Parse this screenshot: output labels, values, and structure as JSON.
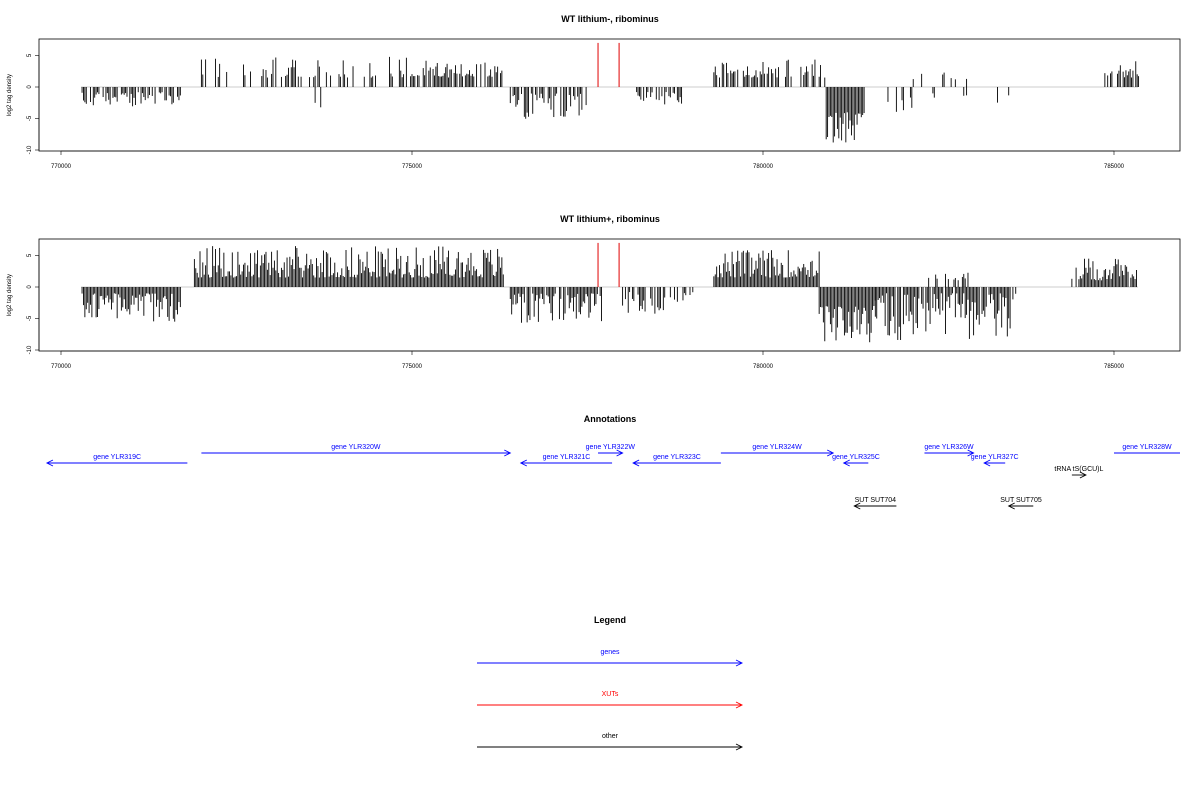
{
  "chart_data": [
    {
      "type": "bar",
      "title": "WT lithium-, ribominus",
      "ylabel": "log2 tag density",
      "xlim": [
        769800,
        786000
      ],
      "ylim": [
        -10,
        7.5
      ],
      "xticks": [
        770000,
        775000,
        780000,
        785000
      ],
      "xtick_labels": [
        "770000",
        "775000",
        "780000",
        "785000"
      ],
      "yticks": [
        -10,
        -5,
        0,
        5
      ],
      "ytick_labels": [
        "-10",
        "-5",
        "0",
        "5"
      ],
      "baseline": 0,
      "grid": false,
      "line_color": "#000000",
      "highlight_color": "#e00000",
      "highlights": [
        {
          "x": 777650,
          "value": 7
        },
        {
          "x": 777950,
          "value": 7
        }
      ],
      "regions": [
        {
          "start": 770300,
          "end": 771700,
          "sign": -1,
          "density": 0.6,
          "min": 0.8,
          "max": 3.2
        },
        {
          "start": 772000,
          "end": 775000,
          "sign": 1,
          "density": 0.4,
          "min": 1.5,
          "max": 4.8
        },
        {
          "start": 773600,
          "end": 773700,
          "sign": -1,
          "density": 0.5,
          "min": 2.5,
          "max": 3.3
        },
        {
          "start": 775000,
          "end": 776300,
          "sign": 1,
          "density": 0.6,
          "min": 1.5,
          "max": 4.2
        },
        {
          "start": 776400,
          "end": 777500,
          "sign": -1,
          "density": 0.6,
          "min": 1.0,
          "max": 5.2
        },
        {
          "start": 778200,
          "end": 778900,
          "sign": -1,
          "density": 0.5,
          "min": 0.8,
          "max": 3.0
        },
        {
          "start": 779300,
          "end": 780900,
          "sign": 1,
          "density": 0.7,
          "min": 1.5,
          "max": 4.5
        },
        {
          "start": 780900,
          "end": 781450,
          "sign": -1,
          "density": 1.0,
          "min": 4.0,
          "max": 9.2
        },
        {
          "start": 781700,
          "end": 783500,
          "sign": -1,
          "density": 0.15,
          "min": 1.0,
          "max": 4.2
        },
        {
          "start": 782100,
          "end": 782900,
          "sign": 1,
          "density": 0.15,
          "min": 1.2,
          "max": 2.3
        },
        {
          "start": 784850,
          "end": 785350,
          "sign": 1,
          "density": 0.8,
          "min": 1.5,
          "max": 4.5
        }
      ]
    },
    {
      "type": "bar",
      "title": "WT lithium+, ribominus",
      "ylabel": "log2 tag density",
      "xlim": [
        769800,
        786000
      ],
      "ylim": [
        -10,
        7.5
      ],
      "xticks": [
        770000,
        775000,
        780000,
        785000
      ],
      "xtick_labels": [
        "770000",
        "775000",
        "780000",
        "785000"
      ],
      "yticks": [
        -10,
        -5,
        0,
        5
      ],
      "ytick_labels": [
        "-10",
        "-5",
        "0",
        "5"
      ],
      "baseline": 0,
      "grid": false,
      "line_color": "#000000",
      "highlight_color": "#e00000",
      "highlights": [
        {
          "x": 777650,
          "value": 7
        },
        {
          "x": 777950,
          "value": 7
        }
      ],
      "regions": [
        {
          "start": 770300,
          "end": 771700,
          "sign": -1,
          "density": 1.0,
          "min": 1.0,
          "max": 5.5
        },
        {
          "start": 771900,
          "end": 776300,
          "sign": 1,
          "density": 1.0,
          "min": 1.5,
          "max": 6.5
        },
        {
          "start": 776400,
          "end": 777700,
          "sign": -1,
          "density": 0.8,
          "min": 1.0,
          "max": 5.8
        },
        {
          "start": 778000,
          "end": 779000,
          "sign": -1,
          "density": 0.4,
          "min": 0.8,
          "max": 4.5
        },
        {
          "start": 779300,
          "end": 780800,
          "sign": 1,
          "density": 1.0,
          "min": 1.5,
          "max": 6.0
        },
        {
          "start": 780800,
          "end": 781600,
          "sign": -1,
          "density": 1.0,
          "min": 3.0,
          "max": 9.0
        },
        {
          "start": 781600,
          "end": 783600,
          "sign": -1,
          "density": 0.9,
          "min": 1.0,
          "max": 8.5
        },
        {
          "start": 782300,
          "end": 783000,
          "sign": 1,
          "density": 0.4,
          "min": 1.0,
          "max": 2.8
        },
        {
          "start": 784400,
          "end": 785350,
          "sign": 1,
          "density": 0.9,
          "min": 1.0,
          "max": 4.5
        }
      ]
    },
    {
      "type": "annotation-track",
      "title": "Annotations",
      "xlim": [
        769800,
        786000
      ],
      "features": [
        {
          "label": "gene YLR319C",
          "start": 769800,
          "end": 771800,
          "strand": "-",
          "row": 1,
          "color": "#0000ff"
        },
        {
          "label": "gene YLR320W",
          "start": 772000,
          "end": 776400,
          "strand": "+",
          "row": 0,
          "color": "#0000ff"
        },
        {
          "label": "gene YLR321C",
          "start": 776550,
          "end": 777850,
          "strand": "-",
          "row": 1,
          "color": "#0000ff"
        },
        {
          "label": "gene YLR322W",
          "start": 777650,
          "end": 778000,
          "strand": "+",
          "row": 0,
          "color": "#0000ff"
        },
        {
          "label": "gene YLR323C",
          "start": 778150,
          "end": 779400,
          "strand": "-",
          "row": 1,
          "color": "#0000ff"
        },
        {
          "label": "gene YLR324W",
          "start": 779400,
          "end": 781000,
          "strand": "+",
          "row": 0,
          "color": "#0000ff"
        },
        {
          "label": "gene YLR325C",
          "start": 781150,
          "end": 781500,
          "strand": "-",
          "row": 1,
          "color": "#0000ff"
        },
        {
          "label": "gene YLR326W",
          "start": 782300,
          "end": 783000,
          "strand": "+",
          "row": 0,
          "color": "#0000ff"
        },
        {
          "label": "gene YLR327C",
          "start": 783150,
          "end": 783450,
          "strand": "-",
          "row": 1,
          "color": "#0000ff"
        },
        {
          "label": "tRNA tS(GCU)L",
          "start": 784400,
          "end": 784600,
          "strand": "+",
          "row": 2,
          "color": "#000000"
        },
        {
          "label": "gene YLR328W",
          "start": 785000,
          "end": 786000,
          "strand": "+",
          "row": 0,
          "color": "#0000ff"
        },
        {
          "label": "SUT SUT704",
          "start": 781300,
          "end": 781900,
          "strand": "-",
          "row": 3,
          "color": "#000000"
        },
        {
          "label": "SUT SUT705",
          "start": 783500,
          "end": 783850,
          "strand": "-",
          "row": 3,
          "color": "#000000"
        }
      ]
    },
    {
      "type": "legend",
      "title": "Legend",
      "entries": [
        {
          "label": "genes",
          "color": "#0000ff"
        },
        {
          "label": "XUTs",
          "color": "#ff0000"
        },
        {
          "label": "other",
          "color": "#000000"
        }
      ]
    }
  ]
}
